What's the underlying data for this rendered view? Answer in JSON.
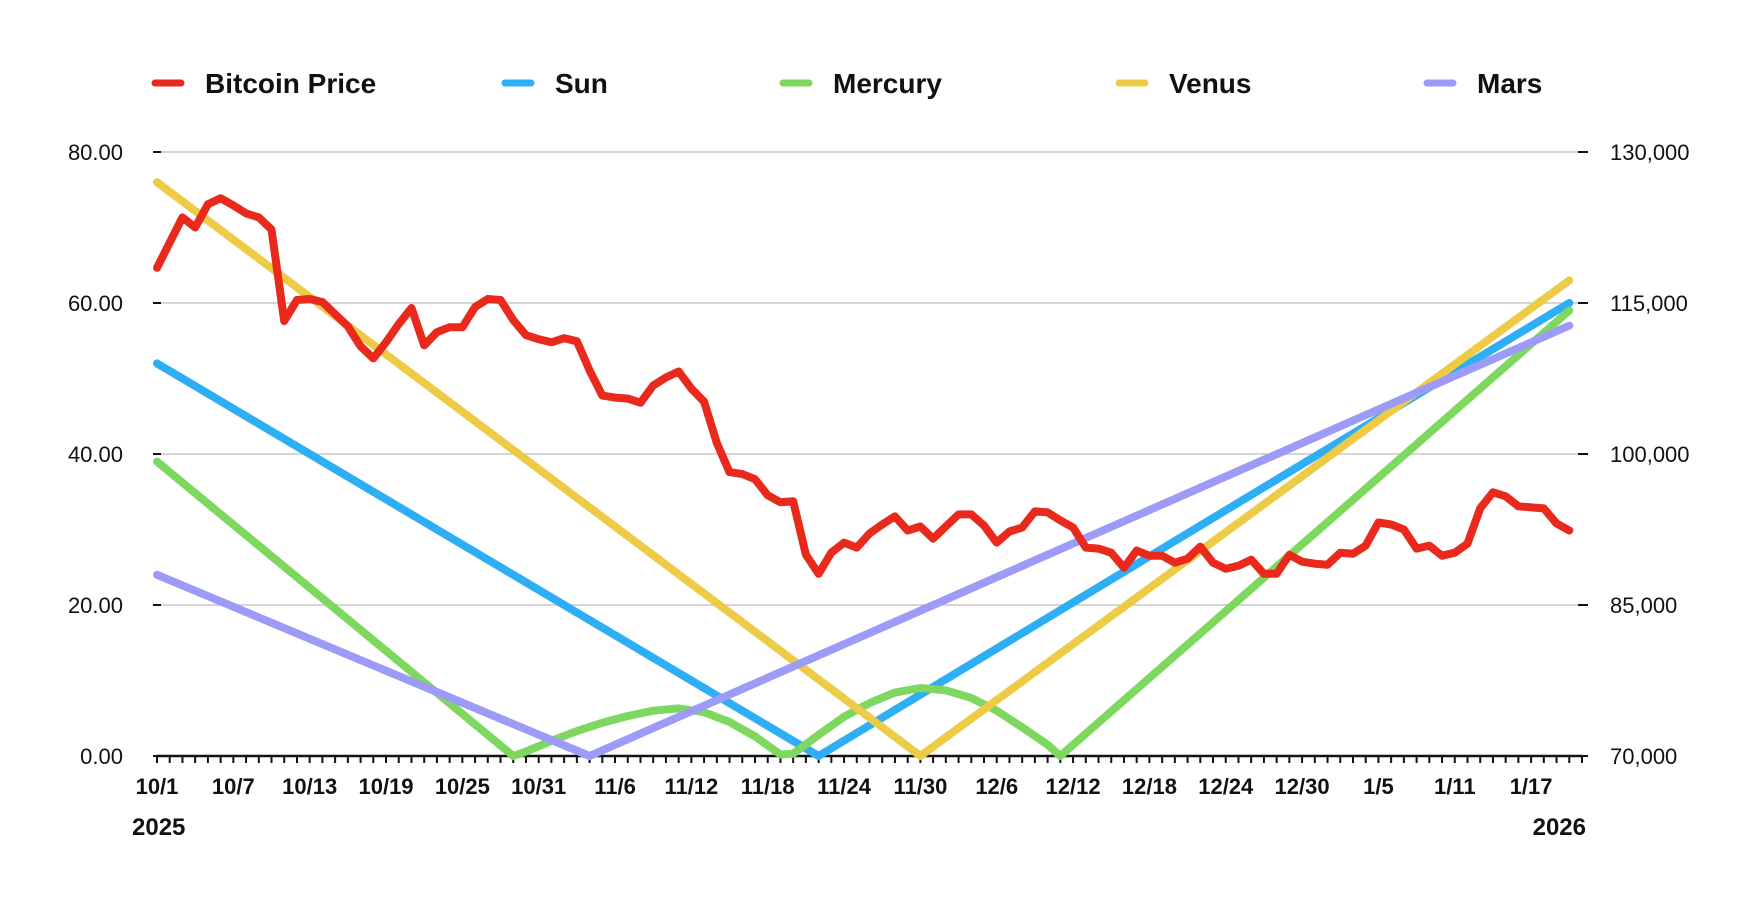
{
  "chart_data": {
    "type": "line",
    "title": "",
    "x_start_label": "10/1",
    "x_tick_labels": [
      "10/1",
      "10/7",
      "10/13",
      "10/19",
      "10/25",
      "10/31",
      "11/6",
      "11/12",
      "11/18",
      "11/24",
      "11/30",
      "12/6",
      "12/12",
      "12/18",
      "12/24",
      "12/30",
      "1/5",
      "1/11",
      "1/17"
    ],
    "year_labels": {
      "start": "2025",
      "end": "2026"
    },
    "y_left": {
      "min": 0,
      "max": 80,
      "ticks": [
        0,
        20,
        40,
        60,
        80
      ],
      "tick_labels": [
        "0.00",
        "20.00",
        "40.00",
        "60.00",
        "80.00"
      ]
    },
    "y_right": {
      "min": 70000,
      "max": 130000,
      "ticks": [
        70000,
        85000,
        100000,
        115000,
        130000
      ],
      "tick_labels": [
        "70,000",
        "85,000",
        "100,000",
        "115,000",
        "130,000"
      ]
    },
    "grid": true,
    "legend_position": "top",
    "series": [
      {
        "name": "Bitcoin Price",
        "axis": "right",
        "color": "#e8291c",
        "points": [
          [
            "10/1",
            118500
          ],
          [
            "10/2",
            121000
          ],
          [
            "10/3",
            123500
          ],
          [
            "10/4",
            122500
          ],
          [
            "10/5",
            124800
          ],
          [
            "10/6",
            125400
          ],
          [
            "10/7",
            124700
          ],
          [
            "10/8",
            123900
          ],
          [
            "10/9",
            123500
          ],
          [
            "10/10",
            122300
          ],
          [
            "10/11",
            113200
          ],
          [
            "10/12",
            115300
          ],
          [
            "10/13",
            115400
          ],
          [
            "10/14",
            115100
          ],
          [
            "10/15",
            113900
          ],
          [
            "10/16",
            112700
          ],
          [
            "10/17",
            110700
          ],
          [
            "10/18",
            109500
          ],
          [
            "10/19",
            111100
          ],
          [
            "10/20",
            112900
          ],
          [
            "10/21",
            114500
          ],
          [
            "10/22",
            110800
          ],
          [
            "10/23",
            112100
          ],
          [
            "10/24",
            112600
          ],
          [
            "10/25",
            112600
          ],
          [
            "10/26",
            114600
          ],
          [
            "10/27",
            115400
          ],
          [
            "10/28",
            115300
          ],
          [
            "10/29",
            113300
          ],
          [
            "10/30",
            111800
          ],
          [
            "10/31",
            111400
          ],
          [
            "11/1",
            111100
          ],
          [
            "11/2",
            111500
          ],
          [
            "11/3",
            111200
          ],
          [
            "11/4",
            108300
          ],
          [
            "11/5",
            105800
          ],
          [
            "11/6",
            105600
          ],
          [
            "11/7",
            105500
          ],
          [
            "11/8",
            105100
          ],
          [
            "11/9",
            106800
          ],
          [
            "11/10",
            107600
          ],
          [
            "11/11",
            108200
          ],
          [
            "11/12",
            106500
          ],
          [
            "11/13",
            105200
          ],
          [
            "11/14",
            101100
          ],
          [
            "11/15",
            98200
          ],
          [
            "11/16",
            98000
          ],
          [
            "11/17",
            97500
          ],
          [
            "11/18",
            95900
          ],
          [
            "11/19",
            95200
          ],
          [
            "11/20",
            95300
          ],
          [
            "11/21",
            90000
          ],
          [
            "11/22",
            88100
          ],
          [
            "11/23",
            90200
          ],
          [
            "11/24",
            91200
          ],
          [
            "11/25",
            90700
          ],
          [
            "11/26",
            92100
          ],
          [
            "11/27",
            93000
          ],
          [
            "11/28",
            93800
          ],
          [
            "11/29",
            92400
          ],
          [
            "11/30",
            92800
          ],
          [
            "12/1",
            91600
          ],
          [
            "12/2",
            92800
          ],
          [
            "12/3",
            94000
          ],
          [
            "12/4",
            94000
          ],
          [
            "12/5",
            92900
          ],
          [
            "12/6",
            91200
          ],
          [
            "12/7",
            92300
          ],
          [
            "12/8",
            92700
          ],
          [
            "12/9",
            94300
          ],
          [
            "12/10",
            94200
          ],
          [
            "12/11",
            93400
          ],
          [
            "12/12",
            92700
          ],
          [
            "12/13",
            90700
          ],
          [
            "12/14",
            90600
          ],
          [
            "12/15",
            90200
          ],
          [
            "12/16",
            88700
          ],
          [
            "12/17",
            90400
          ],
          [
            "12/18",
            89900
          ],
          [
            "12/19",
            89900
          ],
          [
            "12/20",
            89200
          ],
          [
            "12/21",
            89600
          ],
          [
            "12/22",
            90800
          ],
          [
            "12/23",
            89200
          ],
          [
            "12/24",
            88600
          ],
          [
            "12/25",
            88900
          ],
          [
            "12/26",
            89500
          ],
          [
            "12/27",
            88100
          ],
          [
            "12/28",
            88100
          ],
          [
            "12/29",
            90000
          ],
          [
            "12/30",
            89300
          ],
          [
            "12/31",
            89100
          ],
          [
            "1/1",
            89000
          ],
          [
            "1/2",
            90200
          ],
          [
            "1/3",
            90100
          ],
          [
            "1/4",
            90900
          ],
          [
            "1/5",
            93200
          ],
          [
            "1/6",
            93000
          ],
          [
            "1/7",
            92500
          ],
          [
            "1/8",
            90600
          ],
          [
            "1/9",
            90900
          ],
          [
            "1/10",
            89900
          ],
          [
            "1/11",
            90200
          ],
          [
            "1/12",
            91100
          ],
          [
            "1/13",
            94600
          ],
          [
            "1/14",
            96200
          ],
          [
            "1/15",
            95800
          ],
          [
            "1/16",
            94800
          ],
          [
            "1/17",
            94700
          ],
          [
            "1/18",
            94600
          ],
          [
            "1/19",
            93100
          ],
          [
            "1/20",
            92400
          ]
        ]
      },
      {
        "name": "Sun",
        "axis": "left",
        "color": "#2eaef5",
        "points": [
          [
            "10/1",
            52
          ],
          [
            "11/22",
            0
          ],
          [
            "1/20",
            60
          ]
        ]
      },
      {
        "name": "Mercury",
        "axis": "left",
        "color": "#7ed85f",
        "points": [
          [
            "10/1",
            39
          ],
          [
            "10/29",
            0
          ],
          [
            "10/30",
            0.6
          ],
          [
            "11/1",
            2.0
          ],
          [
            "11/3",
            3.3
          ],
          [
            "11/5",
            4.4
          ],
          [
            "11/7",
            5.3
          ],
          [
            "11/9",
            6.0
          ],
          [
            "11/11",
            6.3
          ],
          [
            "11/13",
            5.8
          ],
          [
            "11/15",
            4.5
          ],
          [
            "11/17",
            2.6
          ],
          [
            "11/19",
            0.2
          ],
          [
            "11/20",
            0.3
          ],
          [
            "11/22",
            2.8
          ],
          [
            "11/24",
            5.2
          ],
          [
            "11/26",
            7.0
          ],
          [
            "11/28",
            8.4
          ],
          [
            "11/30",
            9.0
          ],
          [
            "12/2",
            8.7
          ],
          [
            "12/4",
            7.7
          ],
          [
            "12/6",
            6.0
          ],
          [
            "12/8",
            3.8
          ],
          [
            "12/10",
            1.5
          ],
          [
            "12/11",
            0
          ],
          [
            "1/20",
            59
          ]
        ]
      },
      {
        "name": "Venus",
        "axis": "left",
        "color": "#edcb47",
        "points": [
          [
            "10/1",
            76
          ],
          [
            "11/30",
            0
          ],
          [
            "1/20",
            63
          ]
        ]
      },
      {
        "name": "Mars",
        "axis": "left",
        "color": "#9c9cf8",
        "points": [
          [
            "10/1",
            24
          ],
          [
            "11/4",
            0
          ],
          [
            "1/20",
            57
          ]
        ]
      }
    ]
  }
}
